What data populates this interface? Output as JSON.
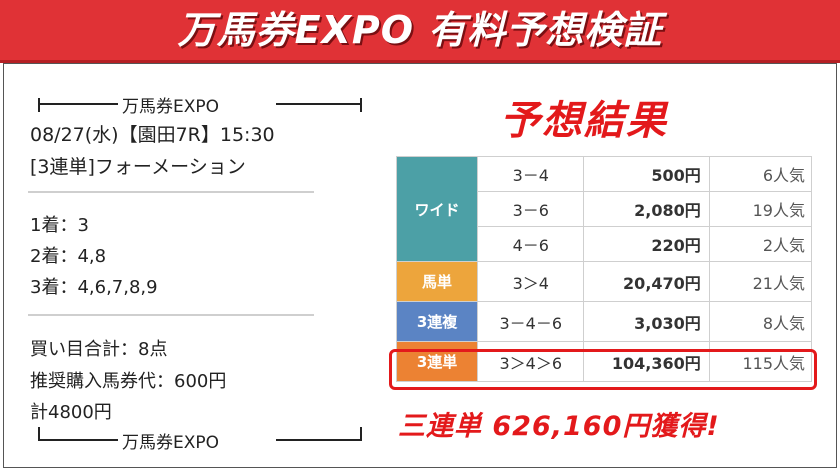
{
  "banner": {
    "title": "万馬券EXPO 有料予想検証"
  },
  "ticket": {
    "header": "万馬券EXPO",
    "race": "08/27(水)【園田7R】15:30",
    "bet_type": "[3連単]フォーメーション",
    "picks": [
      "1着：3",
      "2着：4,8",
      "3着：4,6,7,8,9"
    ],
    "totals": [
      "買い目合計：8点",
      "推奨購入馬券代：600円",
      "計4800円"
    ],
    "footer": "万馬券EXPO"
  },
  "results": {
    "title": "予想結果",
    "rows": [
      {
        "type": "ワイド",
        "color": "#4ca0a6",
        "entries": [
          {
            "combo": "3－4",
            "payout": "500円",
            "pop": "6人気"
          },
          {
            "combo": "3－6",
            "payout": "2,080円",
            "pop": "19人気"
          },
          {
            "combo": "4－6",
            "payout": "220円",
            "pop": "2人気"
          }
        ]
      },
      {
        "type": "馬単",
        "color": "#eda53c",
        "entries": [
          {
            "combo": "3＞4",
            "payout": "20,470円",
            "pop": "21人気"
          }
        ]
      },
      {
        "type": "3連複",
        "color": "#5b84c4",
        "entries": [
          {
            "combo": "3－4－6",
            "payout": "3,030円",
            "pop": "8人気"
          }
        ]
      },
      {
        "type": "3連単",
        "color": "#ec8233",
        "entries": [
          {
            "combo": "3＞4＞6",
            "payout": "104,360円",
            "pop": "115人気"
          }
        ]
      }
    ],
    "win": "三連単 626,160円獲得!"
  }
}
